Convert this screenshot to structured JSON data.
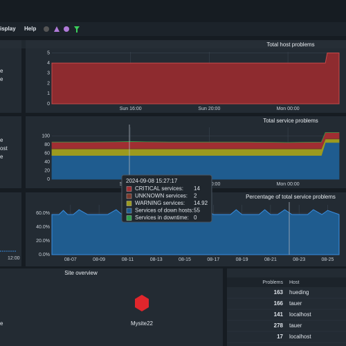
{
  "menu": {
    "items": [
      "isplay",
      "Help"
    ]
  },
  "left_fragments": [
    "e",
    "e",
    "e",
    "ost",
    "e",
    "12:00",
    "e"
  ],
  "host_problems": {
    "type": "area",
    "title": "Total host problems",
    "x": [
      12,
      25.9,
      26.0,
      26.6
    ],
    "values": [
      4,
      4,
      5,
      5
    ],
    "color": "#8e2b2f",
    "xlim": [
      12,
      26.6
    ],
    "xticks": [
      {
        "value": 16,
        "label": "Sun 16:00"
      },
      {
        "value": 20,
        "label": "Sun 20:00"
      },
      {
        "value": 24,
        "label": "Mon 00:00"
      }
    ],
    "ylim": [
      0,
      5.1
    ],
    "yticks": [
      0,
      1,
      2,
      3,
      4,
      5
    ]
  },
  "service_problems": {
    "type": "stacked_area",
    "title": "Total service problems",
    "x": [
      12,
      14,
      16,
      18,
      20,
      22,
      24,
      25.7,
      25.9,
      26.6
    ],
    "series": [
      {
        "name": "Services of down hosts:",
        "color": "#1f5c8f",
        "values": [
          55,
          55,
          55,
          55,
          55,
          55,
          55,
          55,
          85,
          85
        ],
        "hover_value": 55
      },
      {
        "name": "WARNING services:",
        "color": "#9c9a1e",
        "values": [
          15,
          15,
          15,
          15,
          15,
          15,
          15,
          15,
          8,
          8
        ],
        "hover_value": 14.92
      },
      {
        "name": "UNKNOWN services:",
        "color": "#7a3a2c",
        "values": [
          2,
          2,
          2,
          2,
          2,
          2,
          2,
          2,
          2,
          2
        ],
        "hover_value": 2
      },
      {
        "name": "CRITICAL services:",
        "color": "#a02e32",
        "values": [
          14,
          14,
          15,
          14,
          14,
          14,
          13,
          14,
          13,
          13
        ],
        "hover_value": 14
      },
      {
        "name": "Services in downtime:",
        "color": "#2e9e4a",
        "values": [
          0,
          0,
          0,
          0,
          0,
          0,
          0,
          0,
          0,
          0
        ],
        "hover_value": 0
      }
    ],
    "xlim": [
      12,
      26.6
    ],
    "xticks": [
      {
        "value": 16,
        "label": "Sun 16:00"
      },
      {
        "value": 20,
        "label": "Sun 20:00"
      },
      {
        "value": 24,
        "label": "Mon 00:00"
      }
    ],
    "ylim": [
      0,
      120
    ],
    "yticks": [
      0,
      20,
      40,
      60,
      80,
      100
    ],
    "tooltip_time": "2024-09-08 15:27:17"
  },
  "percentage": {
    "type": "area",
    "title": "Percentage of total service problems",
    "x": [
      5.7,
      6.2,
      6.5,
      6.8,
      7.2,
      7.6,
      8.2,
      8.6,
      9.0,
      9.6,
      10.2,
      10.6,
      11.0,
      11.5,
      12.0,
      12.5,
      13.0,
      13.4,
      14.0,
      14.6,
      15.0,
      15.5,
      16.0,
      16.5,
      17.0,
      17.6,
      18.2,
      18.6,
      19.0,
      19.6,
      20.2,
      20.6,
      21.0,
      21.5,
      22.0,
      22.5,
      23.0,
      23.6,
      24.0,
      24.6,
      25.0,
      25.8
    ],
    "values": [
      58,
      58,
      64,
      58,
      58,
      65,
      58,
      58,
      58,
      58,
      65,
      58,
      58,
      63,
      58,
      58,
      65,
      58,
      58,
      58,
      65,
      58,
      58,
      65,
      58,
      58,
      58,
      65,
      58,
      58,
      58,
      65,
      58,
      58,
      65,
      58,
      58,
      58,
      65,
      58,
      64,
      58
    ],
    "color": "#1f5c8f",
    "xlim": [
      5.7,
      25.8
    ],
    "xticks": [
      {
        "value": 7,
        "label": "08-07"
      },
      {
        "value": 9,
        "label": "08-09"
      },
      {
        "value": 11,
        "label": "08-11"
      },
      {
        "value": 13,
        "label": "08-13"
      },
      {
        "value": 15,
        "label": "08-15"
      },
      {
        "value": 17,
        "label": "08-17"
      },
      {
        "value": 19,
        "label": "08-19"
      },
      {
        "value": 21,
        "label": "08-21"
      },
      {
        "value": 23,
        "label": "08-23"
      },
      {
        "value": 25,
        "label": "08-25"
      }
    ],
    "ylim": [
      0,
      72
    ],
    "yticks": [
      {
        "value": 0,
        "label": "0.0%"
      },
      {
        "value": 20,
        "label": "20.0%"
      },
      {
        "value": 40,
        "label": "40.0%"
      },
      {
        "value": 60,
        "label": "60.0%"
      }
    ]
  },
  "site_overview": {
    "title": "Site overview",
    "site": "Mysite22"
  },
  "host_table": {
    "headers": [
      "Problems",
      "Host"
    ],
    "rows": [
      [
        163,
        "hueding"
      ],
      [
        166,
        "tauer"
      ],
      [
        141,
        "localhost"
      ],
      [
        278,
        "tauer"
      ],
      [
        17,
        "localhost"
      ]
    ]
  }
}
